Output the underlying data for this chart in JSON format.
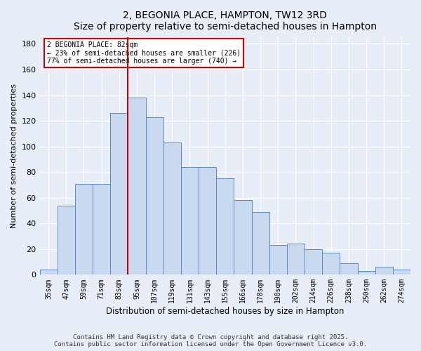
{
  "title": "2, BEGONIA PLACE, HAMPTON, TW12 3RD",
  "subtitle": "Size of property relative to semi-detached houses in Hampton",
  "xlabel": "Distribution of semi-detached houses by size in Hampton",
  "ylabel": "Number of semi-detached properties",
  "bar_labels": [
    "35sqm",
    "47sqm",
    "59sqm",
    "71sqm",
    "83sqm",
    "95sqm",
    "107sqm",
    "119sqm",
    "131sqm",
    "143sqm",
    "155sqm",
    "166sqm",
    "178sqm",
    "190sqm",
    "202sqm",
    "214sqm",
    "226sqm",
    "238sqm",
    "250sqm",
    "262sqm",
    "274sqm"
  ],
  "bar_values": [
    4,
    54,
    71,
    71,
    126,
    138,
    123,
    103,
    84,
    84,
    75,
    58,
    49,
    23,
    24,
    20,
    17,
    9,
    3,
    6,
    4
  ],
  "bar_color": "#c9d9f0",
  "bar_edge_color": "#5a8abf",
  "vline_x": 4,
  "vline_color": "#cc0000",
  "annotation_title": "2 BEGONIA PLACE: 82sqm",
  "annotation_line1": "← 23% of semi-detached houses are smaller (226)",
  "annotation_line2": "77% of semi-detached houses are larger (740) →",
  "annotation_box_color": "#cc0000",
  "ylim": [
    0,
    185
  ],
  "yticks": [
    0,
    20,
    40,
    60,
    80,
    100,
    120,
    140,
    160,
    180
  ],
  "footer1": "Contains HM Land Registry data © Crown copyright and database right 2025.",
  "footer2": "Contains public sector information licensed under the Open Government Licence v3.0.",
  "bg_color": "#e8eef8",
  "plot_bg_color": "#e8eef8"
}
